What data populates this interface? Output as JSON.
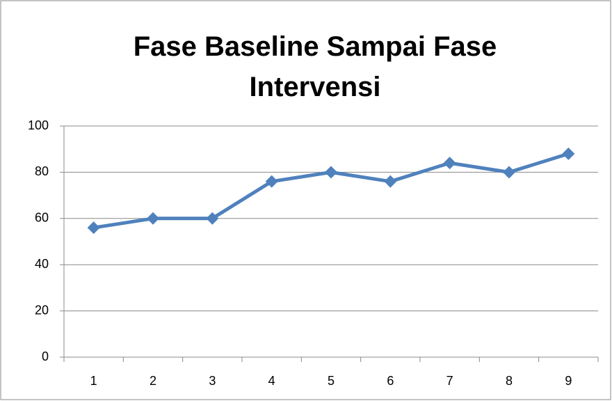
{
  "chart_data": {
    "type": "line",
    "title": "Fase Baseline Sampai Fase Intervensi",
    "categories": [
      "1",
      "2",
      "3",
      "4",
      "5",
      "6",
      "7",
      "8",
      "9"
    ],
    "values": [
      56,
      60,
      60,
      76,
      80,
      76,
      84,
      80,
      88
    ],
    "color": "#4f81bd",
    "ylim": [
      0,
      100
    ],
    "yticks": [
      0,
      20,
      40,
      60,
      80,
      100
    ],
    "grid": true
  }
}
